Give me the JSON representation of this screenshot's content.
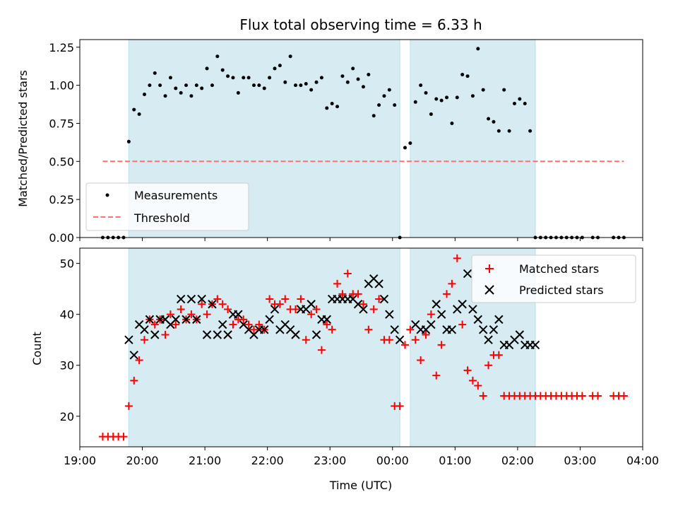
{
  "chart_data": [
    {
      "type": "scatter",
      "title": "Flux total observing time = 6.33 h",
      "xlabel": "",
      "ylabel": "Matched/Predicted stars",
      "xlim": [
        "19:00",
        "04:00"
      ],
      "ylim": [
        0,
        1.3
      ],
      "yticks": [
        "0.00",
        "0.25",
        "0.50",
        "0.75",
        "1.00",
        "1.25"
      ],
      "shaded_intervals": [
        [
          "19:47",
          "00:07"
        ],
        [
          "00:17",
          "02:17"
        ]
      ],
      "shade_color": "#add8e6",
      "legend": {
        "position": "lower-left",
        "entries": [
          "Measurements",
          "Threshold"
        ]
      },
      "series": [
        {
          "name": "Measurements",
          "marker": "dot",
          "color": "#000000",
          "x": [
            "19:22",
            "19:27",
            "19:32",
            "19:37",
            "19:42",
            "19:47",
            "19:52",
            "19:57",
            "20:02",
            "20:07",
            "20:12",
            "20:17",
            "20:22",
            "20:27",
            "20:32",
            "20:37",
            "20:42",
            "20:47",
            "20:52",
            "20:57",
            "21:02",
            "21:07",
            "21:12",
            "21:17",
            "21:22",
            "21:27",
            "21:32",
            "21:37",
            "21:42",
            "21:47",
            "21:52",
            "21:57",
            "22:02",
            "22:07",
            "22:12",
            "22:17",
            "22:22",
            "22:27",
            "22:32",
            "22:37",
            "22:42",
            "22:47",
            "22:52",
            "22:57",
            "23:02",
            "23:07",
            "23:12",
            "23:17",
            "23:22",
            "23:27",
            "23:32",
            "23:37",
            "23:42",
            "23:47",
            "23:52",
            "23:57",
            "00:02",
            "00:07",
            "00:12",
            "00:17",
            "00:22",
            "00:27",
            "00:32",
            "00:37",
            "00:42",
            "00:47",
            "00:52",
            "00:57",
            "01:02",
            "01:07",
            "01:12",
            "01:17",
            "01:22",
            "01:27",
            "01:32",
            "01:37",
            "01:42",
            "01:47",
            "01:52",
            "01:57",
            "02:02",
            "02:07",
            "02:12",
            "02:17",
            "02:22",
            "02:27",
            "02:32",
            "02:37",
            "02:42",
            "02:47",
            "02:52",
            "02:57",
            "03:02",
            "03:12",
            "03:17",
            "03:32",
            "03:37",
            "03:42"
          ],
          "y": [
            0,
            0,
            0,
            0,
            0,
            0.63,
            0.84,
            0.81,
            0.94,
            1.0,
            1.08,
            1.0,
            0.93,
            1.05,
            0.98,
            0.95,
            1.0,
            0.93,
            1.0,
            0.98,
            1.11,
            1.0,
            1.19,
            1.1,
            1.06,
            1.05,
            0.95,
            1.05,
            1.05,
            1.0,
            1.0,
            0.98,
            1.05,
            1.11,
            1.13,
            1.02,
            1.19,
            1.0,
            1.0,
            1.01,
            0.97,
            1.02,
            1.05,
            0.85,
            0.88,
            0.86,
            1.06,
            1.02,
            1.11,
            1.04,
            0.99,
            1.07,
            0.8,
            0.87,
            0.93,
            0.97,
            0.87,
            0,
            0.59,
            0.62,
            0.89,
            1.0,
            0.95,
            0.81,
            0.91,
            0.9,
            0.92,
            0.75,
            0.92,
            1.07,
            1.06,
            0.93,
            1.24,
            0.97,
            0.78,
            0.76,
            0.7,
            0.97,
            0.7,
            0.88,
            0.91,
            0.88,
            0.7,
            0,
            0,
            0,
            0,
            0,
            0,
            0,
            0,
            0,
            0,
            0,
            0,
            0,
            0,
            0
          ]
        },
        {
          "name": "Threshold",
          "type": "line",
          "style": "dashed",
          "color": "#ff7070",
          "x": [
            "19:22",
            "03:42"
          ],
          "y": [
            0.5,
            0.5
          ]
        }
      ]
    },
    {
      "type": "scatter",
      "title": "",
      "xlabel": "Time (UTC)",
      "ylabel": "Count",
      "xlim": [
        "19:00",
        "04:00"
      ],
      "ylim": [
        14,
        53
      ],
      "xticks": [
        "19:00",
        "20:00",
        "21:00",
        "22:00",
        "23:00",
        "00:00",
        "01:00",
        "02:00",
        "03:00",
        "04:00"
      ],
      "yticks": [
        "20",
        "30",
        "40",
        "50"
      ],
      "shaded_intervals": [
        [
          "19:47",
          "00:07"
        ],
        [
          "00:17",
          "02:17"
        ]
      ],
      "shade_color": "#add8e6",
      "legend": {
        "position": "upper-right",
        "entries": [
          "Matched stars",
          "Predicted stars"
        ]
      },
      "series": [
        {
          "name": "Matched stars",
          "marker": "plus",
          "color": "#ff0000",
          "x": [
            "19:22",
            "19:27",
            "19:32",
            "19:37",
            "19:42",
            "19:47",
            "19:52",
            "19:57",
            "20:02",
            "20:07",
            "20:12",
            "20:17",
            "20:22",
            "20:27",
            "20:32",
            "20:37",
            "20:42",
            "20:47",
            "20:52",
            "20:57",
            "21:02",
            "21:07",
            "21:12",
            "21:17",
            "21:22",
            "21:27",
            "21:32",
            "21:37",
            "21:42",
            "21:47",
            "21:52",
            "21:57",
            "22:02",
            "22:07",
            "22:12",
            "22:17",
            "22:22",
            "22:27",
            "22:32",
            "22:37",
            "22:42",
            "22:47",
            "22:52",
            "22:57",
            "23:02",
            "23:07",
            "23:12",
            "23:17",
            "23:22",
            "23:27",
            "23:32",
            "23:37",
            "23:42",
            "23:47",
            "23:52",
            "23:57",
            "00:02",
            "00:07",
            "00:12",
            "00:17",
            "00:22",
            "00:27",
            "00:32",
            "00:37",
            "00:42",
            "00:47",
            "00:52",
            "00:57",
            "01:02",
            "01:07",
            "01:12",
            "01:17",
            "01:22",
            "01:27",
            "01:32",
            "01:37",
            "01:42",
            "01:47",
            "01:52",
            "01:57",
            "02:02",
            "02:07",
            "02:12",
            "02:17",
            "02:22",
            "02:27",
            "02:32",
            "02:37",
            "02:42",
            "02:47",
            "02:52",
            "02:57",
            "03:02",
            "03:12",
            "03:17",
            "03:32",
            "03:37",
            "03:42"
          ],
          "y": [
            16,
            16,
            16,
            16,
            16,
            22,
            27,
            31,
            35,
            39,
            38,
            39,
            36,
            40,
            38,
            41,
            39,
            40,
            39,
            42,
            40,
            42,
            43,
            42,
            41,
            38,
            39,
            39,
            38,
            37,
            38,
            37,
            43,
            42,
            42,
            43,
            41,
            41,
            43,
            35,
            40,
            41,
            33,
            38,
            37,
            46,
            44,
            48,
            44,
            44,
            42,
            37,
            41,
            43,
            35,
            35,
            22,
            22,
            34,
            37,
            35,
            31,
            36,
            40,
            28,
            34,
            44,
            46,
            51,
            38,
            29,
            27,
            26,
            24,
            30,
            32,
            32,
            24,
            24,
            24,
            24,
            24,
            24,
            24,
            24,
            24,
            24,
            24,
            24,
            24,
            24,
            24,
            24,
            24,
            24,
            24,
            24,
            24
          ]
        },
        {
          "name": "Predicted stars",
          "marker": "x",
          "color": "#000000",
          "x": [
            "19:47",
            "19:52",
            "19:57",
            "20:02",
            "20:07",
            "20:12",
            "20:17",
            "20:22",
            "20:27",
            "20:32",
            "20:37",
            "20:42",
            "20:47",
            "20:52",
            "20:57",
            "21:02",
            "21:07",
            "21:12",
            "21:17",
            "21:22",
            "21:27",
            "21:32",
            "21:37",
            "21:42",
            "21:47",
            "21:52",
            "21:57",
            "22:02",
            "22:07",
            "22:12",
            "22:17",
            "22:22",
            "22:27",
            "22:32",
            "22:37",
            "22:42",
            "22:47",
            "22:52",
            "22:57",
            "23:02",
            "23:07",
            "23:12",
            "23:17",
            "23:22",
            "23:27",
            "23:32",
            "23:37",
            "23:42",
            "23:47",
            "23:52",
            "23:57",
            "00:02",
            "00:07",
            "00:22",
            "00:27",
            "00:32",
            "00:37",
            "00:42",
            "00:47",
            "00:52",
            "00:57",
            "01:02",
            "01:07",
            "01:12",
            "01:17",
            "01:22",
            "01:27",
            "01:32",
            "01:37",
            "01:42",
            "01:47",
            "01:52",
            "01:57",
            "02:02",
            "02:07",
            "02:12",
            "02:17"
          ],
          "y": [
            35,
            32,
            38,
            37,
            39,
            36,
            39,
            39,
            38,
            39,
            43,
            39,
            43,
            39,
            43,
            36,
            42,
            36,
            38,
            36,
            40,
            40,
            38,
            37,
            36,
            37,
            37,
            39,
            41,
            37,
            38,
            37,
            36,
            41,
            41,
            42,
            36,
            39,
            39,
            43,
            43,
            43,
            43,
            43,
            42,
            41,
            46,
            47,
            46,
            43,
            40,
            37,
            35,
            38,
            37,
            37,
            38,
            42,
            40,
            37,
            37,
            41,
            42,
            48,
            41,
            39,
            37,
            35,
            37,
            39,
            34,
            34,
            35,
            36,
            34,
            34,
            34
          ]
        }
      ]
    }
  ]
}
